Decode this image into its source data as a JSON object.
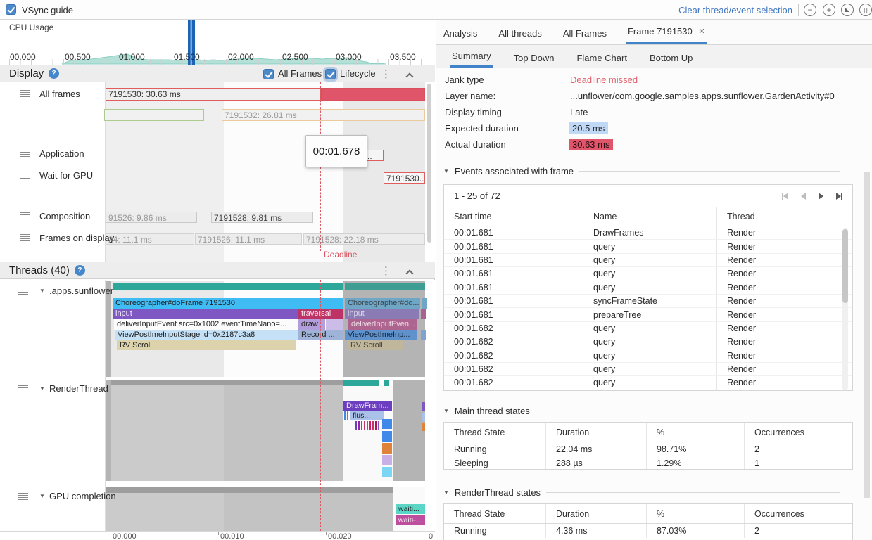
{
  "topbar": {
    "vsync": "VSync guide",
    "clear": "Clear thread/event selection"
  },
  "cpu": {
    "label": "CPU Usage",
    "ticks": [
      "00.000",
      "00.500",
      "01.000",
      "01.500",
      "02.000",
      "02.500",
      "03.000",
      "03.500"
    ]
  },
  "display": {
    "title": "Display",
    "checks": [
      "All Frames",
      "Lifecycle"
    ],
    "rows": [
      "All frames",
      "Application",
      "Wait for GPU",
      "Composition",
      "Frames on display"
    ],
    "frame1": "7191530: 30.63 ms",
    "frame2": "7191532: 26.81 ms",
    "app_frame": "7191530...",
    "gpu_frame": "7191530...",
    "comp1": "91526: 9.86 ms",
    "comp2": "7191528: 9.81 ms",
    "fod1": "24: 11.1 ms",
    "fod2": "7191526: 11.1 ms",
    "fod3": "7191528: 22.18 ms",
    "deadline": "Deadline",
    "tooltip": "00:01.678"
  },
  "threads": {
    "title": "Threads (40)",
    "rows": [
      ".apps.sunflower",
      "RenderThread",
      "GPU completion"
    ],
    "bars": {
      "choreo": "Choreographer#doFrame 7191530",
      "input": "input",
      "traversal": "traversal",
      "deliver": "deliverInputEvent src=0x1002 eventTimeNano=...",
      "draw": "draw",
      "viewpost": "ViewPostImeInputStage id=0x2187c3a8",
      "record": "Record ...",
      "rvscroll": "RV Scroll",
      "dim_choreo": "Choreographer#do...",
      "dim_input": "input",
      "dim_deliver": "deliverInputEven...",
      "dim_viewpost": "ViewPostImeInp...",
      "dim_rvscroll": "RV Scroll",
      "drawframes": "DrawFram...",
      "flush": "flus...",
      "waiting": "waiti...",
      "waitfence": "waitF..."
    },
    "axis": [
      "00.000",
      "00.010",
      "00.020",
      "0"
    ]
  },
  "panel": {
    "tabs": [
      "Analysis",
      "All threads",
      "All Frames",
      "Frame 7191530"
    ],
    "subtabs": [
      "Summary",
      "Top Down",
      "Flame Chart",
      "Bottom Up"
    ],
    "summary": {
      "rows": [
        {
          "label": "Jank type",
          "value": "Deadline missed"
        },
        {
          "label": "Layer name:",
          "value": "...unflower/com.google.samples.apps.sunflower.GardenActivity#0"
        },
        {
          "label": "Display timing",
          "value": "Late"
        },
        {
          "label": "Expected duration",
          "value": "20.5 ms"
        },
        {
          "label": "Actual duration",
          "value": "30.63 ms"
        }
      ]
    },
    "events": {
      "title": "Events associated with frame",
      "pagination": "1 - 25 of 72",
      "headers": [
        "Start time",
        "Name",
        "Thread"
      ],
      "rows": [
        [
          "00:01.681",
          "DrawFrames",
          "Render"
        ],
        [
          "00:01.681",
          "query",
          "Render"
        ],
        [
          "00:01.681",
          "query",
          "Render"
        ],
        [
          "00:01.681",
          "query",
          "Render"
        ],
        [
          "00:01.681",
          "query",
          "Render"
        ],
        [
          "00:01.681",
          "syncFrameState",
          "Render"
        ],
        [
          "00:01.681",
          "prepareTree",
          "Render"
        ],
        [
          "00:01.682",
          "query",
          "Render"
        ],
        [
          "00:01.682",
          "query",
          "Render"
        ],
        [
          "00:01.682",
          "query",
          "Render"
        ],
        [
          "00:01.682",
          "query",
          "Render"
        ],
        [
          "00:01.682",
          "query",
          "Render"
        ]
      ]
    },
    "main_states": {
      "title": "Main thread states",
      "headers": [
        "Thread State",
        "Duration",
        "%",
        "Occurrences"
      ],
      "rows": [
        [
          "Running",
          "22.04 ms",
          "98.71%",
          "2"
        ],
        [
          "Sleeping",
          "288 µs",
          "1.29%",
          "1"
        ]
      ]
    },
    "render_states": {
      "title": "RenderThread states",
      "headers": [
        "Thread State",
        "Duration",
        "%",
        "Occurrences"
      ],
      "rows": [
        [
          "Running",
          "4.36 ms",
          "87.03%",
          "2"
        ]
      ]
    }
  },
  "colors": {
    "accent_blue": "#3d76c2",
    "jank_red": "#e0556a",
    "expected_blue": "#bfd8f6",
    "running_teal": "#2ea79b"
  }
}
